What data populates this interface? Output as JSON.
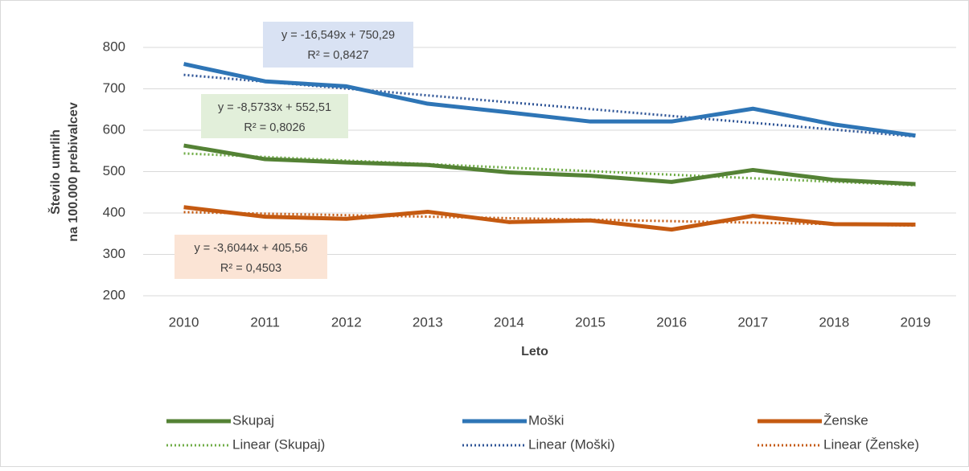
{
  "chart_data": {
    "type": "line",
    "x_label": "Leto",
    "y_label": [
      "Število umrlih",
      "na 100.000 prebivalcev"
    ],
    "categories": [
      "2010",
      "2011",
      "2012",
      "2013",
      "2014",
      "2015",
      "2016",
      "2017",
      "2018",
      "2019"
    ],
    "ylim": [
      200,
      800
    ],
    "yticks": [
      200,
      300,
      400,
      500,
      600,
      700,
      800
    ],
    "grid": true,
    "legend": "bottom",
    "series": [
      {
        "name": "Skupaj",
        "color": "#548235",
        "style": "solid",
        "values": [
          563,
          530,
          522,
          516,
          498,
          490,
          475,
          504,
          480,
          470
        ]
      },
      {
        "name": "Moški",
        "color": "#2e75b6",
        "style": "solid",
        "values": [
          760,
          718,
          706,
          664,
          643,
          621,
          621,
          652,
          614,
          587
        ]
      },
      {
        "name": "Ženske",
        "color": "#c55a11",
        "style": "solid",
        "values": [
          414,
          391,
          386,
          403,
          378,
          382,
          360,
          393,
          373,
          372
        ]
      },
      {
        "name": "Linear (Skupaj)",
        "color": "#70ad47",
        "style": "dotted",
        "values": [
          543.9,
          535.4,
          526.8,
          518.2,
          509.6,
          501.1,
          492.5,
          483.9,
          475.4,
          466.8
        ]
      },
      {
        "name": "Linear (Moški)",
        "color": "#2f5597",
        "style": "dotted",
        "values": [
          733.7,
          717.2,
          700.6,
          684.1,
          667.5,
          651.0,
          634.4,
          617.9,
          601.4,
          584.8
        ]
      },
      {
        "name": "Linear (Ženske)",
        "color": "#c55a11",
        "style": "dotted",
        "values": [
          402.0,
          398.4,
          394.7,
          391.1,
          387.5,
          383.9,
          380.3,
          376.7,
          373.1,
          369.5
        ]
      }
    ],
    "annotations": [
      {
        "lines": [
          "y = -16,549x + 750,29",
          "R² = 0,8427"
        ],
        "color": "#d9e2f3"
      },
      {
        "lines": [
          "y = -8,5733x + 552,51",
          "R² = 0,8026"
        ],
        "color": "#e2efda"
      },
      {
        "lines": [
          "y = -3,6044x + 405,56",
          "R² = 0,4503"
        ],
        "color": "#fbe4d5"
      }
    ]
  }
}
